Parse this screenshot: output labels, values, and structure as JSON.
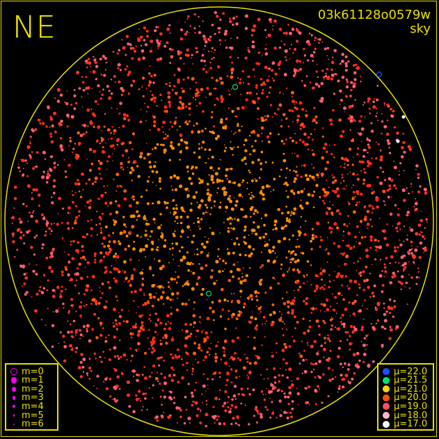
{
  "header": {
    "direction": "NE",
    "frame_id": "03k61128o0579w",
    "mode": "sky"
  },
  "field_color": "#e8e000",
  "magnitude_legend": [
    {
      "label": "m=0",
      "symbol": "open-circle"
    },
    {
      "label": "m=1",
      "symbol": "dot"
    },
    {
      "label": "m=2",
      "symbol": "dot"
    },
    {
      "label": "m=3",
      "symbol": "dot"
    },
    {
      "label": "m=4",
      "symbol": "dot"
    },
    {
      "label": "m=5",
      "symbol": "dot"
    },
    {
      "label": "m=6",
      "symbol": "dot"
    }
  ],
  "magnitude_color": "#ff00ff",
  "surface_brightness_legend": [
    {
      "label": "μ=22.0",
      "color": "#1a50ff"
    },
    {
      "label": "μ=21.5",
      "color": "#00e070"
    },
    {
      "label": "μ=21.0",
      "color": "#ffd400"
    },
    {
      "label": "μ=20.0",
      "color": "#ff5010"
    },
    {
      "label": "μ=19.0",
      "color": "#ff5060"
    },
    {
      "label": "μ=18.0",
      "color": "#ffb8c8"
    },
    {
      "label": "μ=17.0",
      "color": "#ffffff"
    }
  ]
}
